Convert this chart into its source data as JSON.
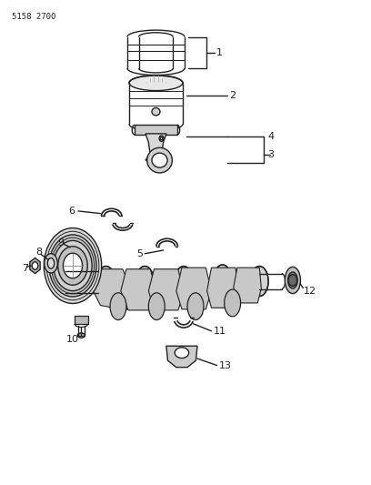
{
  "title_code": "5158 2700",
  "background_color": "#ffffff",
  "line_color": "#222222",
  "figsize": [
    4.08,
    5.33
  ],
  "dpi": 100
}
